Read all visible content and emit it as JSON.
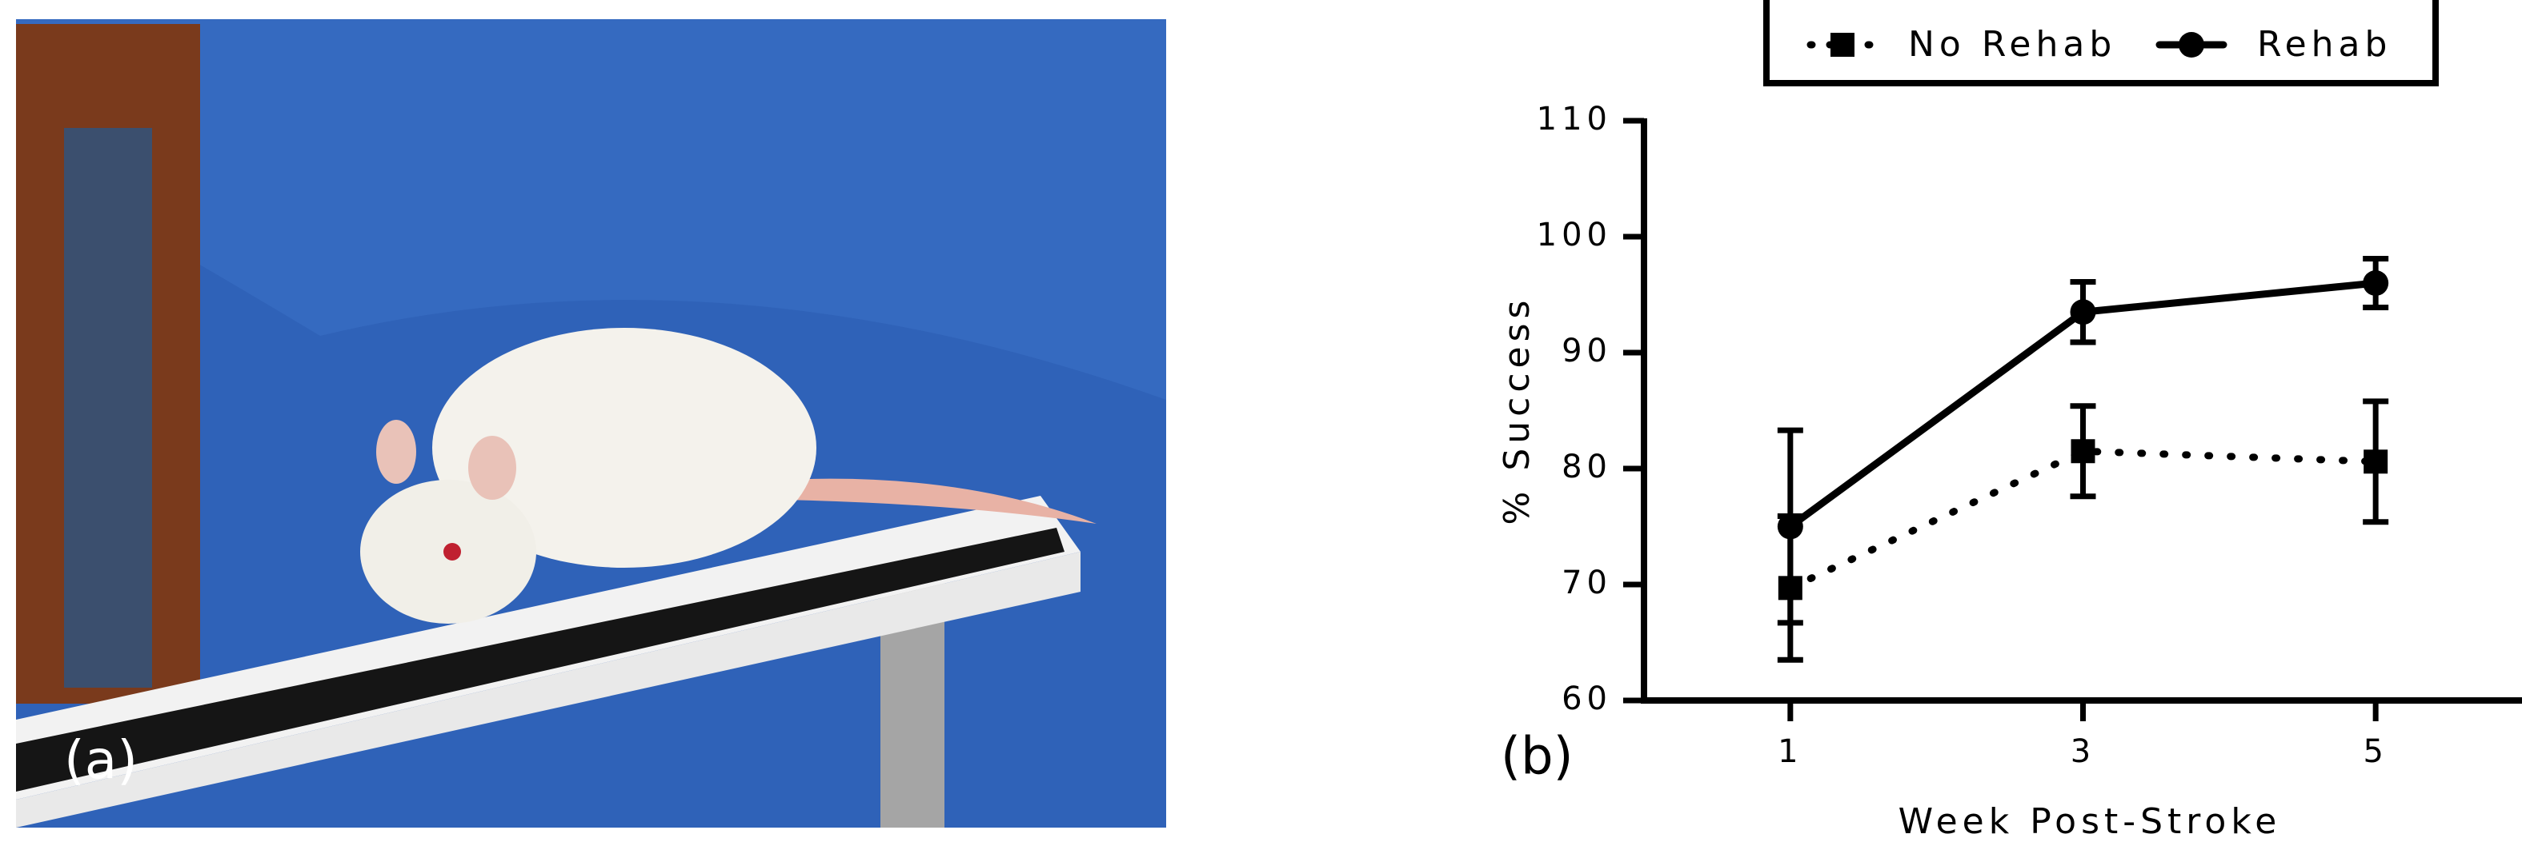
{
  "panel_a": {
    "label": "(a)"
  },
  "chart_data": {
    "type": "line",
    "panel_label": "(b)",
    "x_label": "Week Post-Stroke",
    "y_label": "% Success",
    "x": [
      1,
      3,
      5
    ],
    "series": [
      {
        "name": "No Rehab",
        "color": "#000000",
        "marker": "square",
        "line_style": "dotted",
        "values": [
          69.7,
          81.5,
          80.6
        ],
        "errors": [
          6.2,
          3.9,
          5.2
        ]
      },
      {
        "name": "Rehab",
        "color": "#000000",
        "marker": "circle",
        "line_style": "solid",
        "values": [
          75,
          93.5,
          96
        ],
        "errors": [
          8.3,
          2.6,
          2.1
        ]
      }
    ],
    "xlim": [
      0,
      6
    ],
    "xticks": [
      1,
      3,
      5
    ],
    "ylim": [
      60,
      110
    ],
    "yticks": [
      60,
      70,
      80,
      90,
      100,
      110
    ],
    "grid": false,
    "legend": "top"
  }
}
